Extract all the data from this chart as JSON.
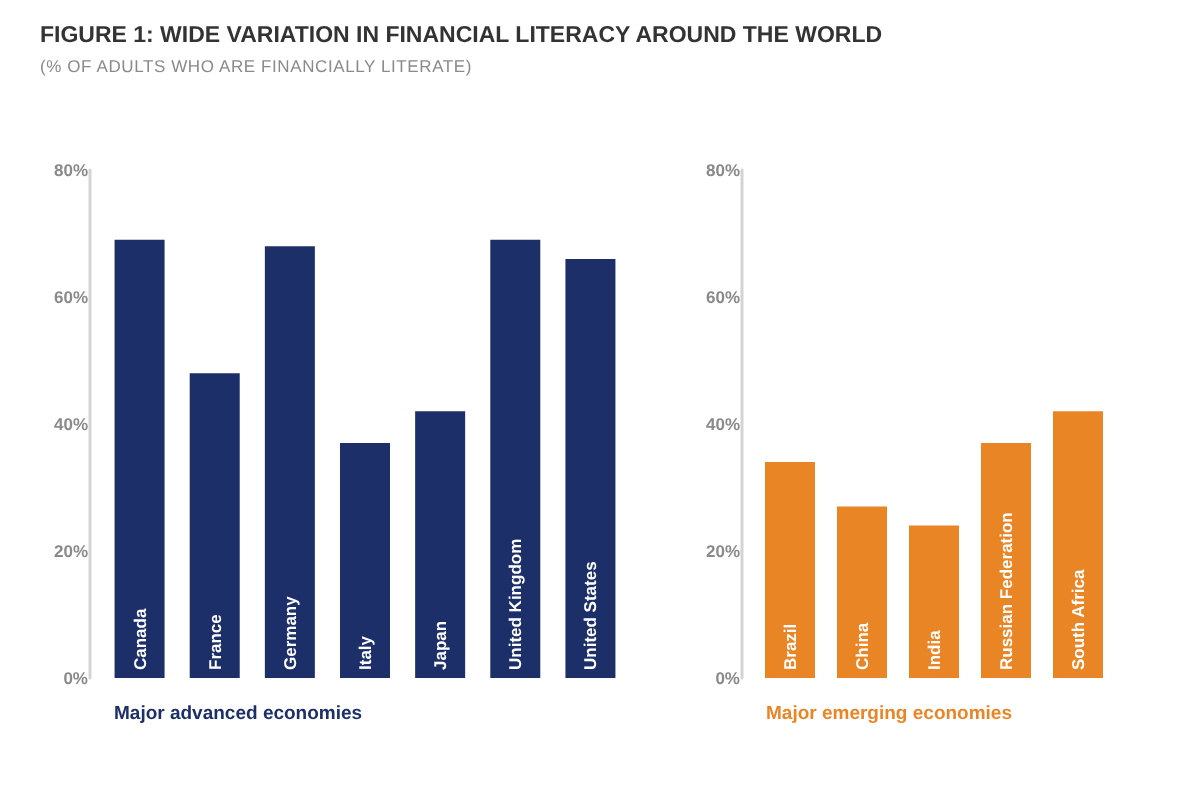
{
  "chart_data": [
    {
      "type": "bar",
      "title": "FIGURE 1: WIDE VARIATION IN FINANCIAL LITERACY AROUND THE WORLD",
      "subtitle": "(% OF ADULTS WHO ARE FINANCIALLY LITERATE)",
      "xlabel": "Major advanced economies",
      "categories": [
        "Canada",
        "France",
        "Germany",
        "Italy",
        "Japan",
        "United Kingdom",
        "United States"
      ],
      "values": [
        69,
        48,
        68,
        37,
        42,
        69,
        66
      ],
      "color": "#1c2f68",
      "ylim": [
        0,
        80
      ],
      "yticks": [
        {
          "value": 0,
          "label": "0%"
        },
        {
          "value": 20,
          "label": "20%"
        },
        {
          "value": 40,
          "label": "40%"
        },
        {
          "value": 60,
          "label": "60%"
        },
        {
          "value": 80,
          "label": "80%"
        }
      ]
    },
    {
      "type": "bar",
      "xlabel": "Major emerging economies",
      "categories": [
        "Brazil",
        "China",
        "India",
        "Russian Federation",
        "South Africa"
      ],
      "values": [
        34,
        27,
        24,
        37,
        42
      ],
      "color": "#ea8526",
      "ylim": [
        0,
        80
      ],
      "yticks": [
        {
          "value": 0,
          "label": "0%"
        },
        {
          "value": 20,
          "label": "20%"
        },
        {
          "value": 40,
          "label": "40%"
        },
        {
          "value": 60,
          "label": "60%"
        },
        {
          "value": 80,
          "label": "80%"
        }
      ]
    }
  ]
}
